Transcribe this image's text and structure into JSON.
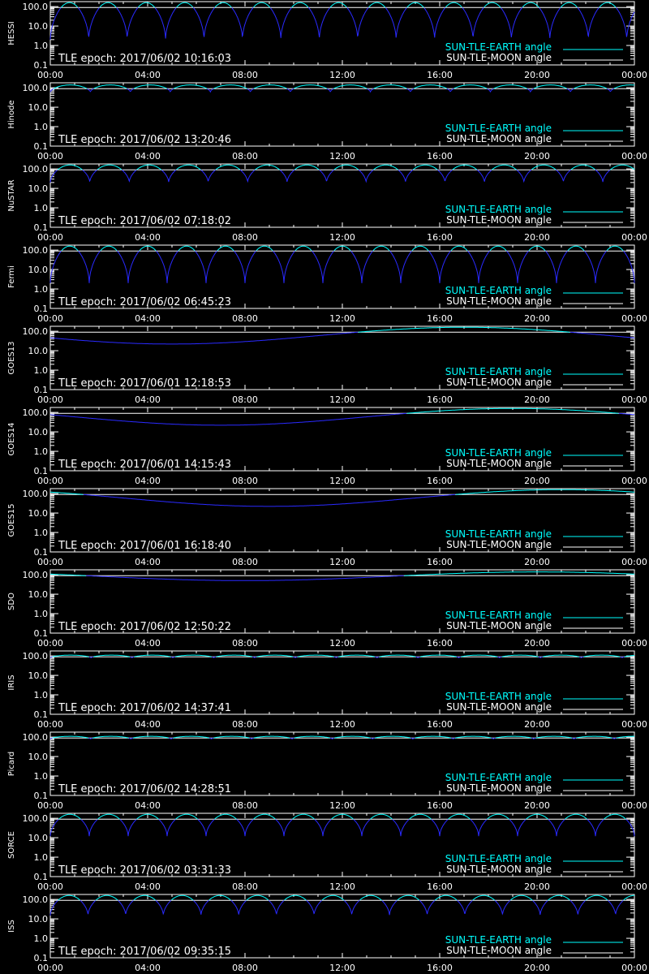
{
  "x_ticks": [
    "00:00",
    "04:00",
    "08:00",
    "12:00",
    "16:00",
    "20:00",
    "00:00"
  ],
  "y_ticks": [
    "100.0",
    "10.0",
    "1.0",
    "0.1"
  ],
  "legend": {
    "earth": "SUN-TLE-EARTH angle",
    "moon": "SUN-TLE-MOON angle"
  },
  "colors": {
    "background": "#000000",
    "axes": "#ffffff",
    "earth": "#00ffff",
    "orbit_dip": "#2a2aff",
    "moon": "#ffffff"
  },
  "chart_data": [
    {
      "type": "line",
      "ylabel": "HESSI",
      "epoch_text": "TLE epoch: 2017/06/02 10:16:03",
      "yscale": "log",
      "ylim": [
        0.1,
        180
      ],
      "xlim_hours": [
        0,
        24
      ],
      "moon_angle": 90,
      "earth_pattern": {
        "orbits_per_day": 15.2,
        "max": 160,
        "min": 2
      }
    },
    {
      "type": "line",
      "ylabel": "Hinode",
      "epoch_text": "TLE epoch: 2017/06/02 13:20:46",
      "yscale": "log",
      "ylim": [
        0.1,
        180
      ],
      "xlim_hours": [
        0,
        24
      ],
      "moon_angle": 90,
      "earth_pattern": {
        "orbits_per_day": 14.6,
        "max": 140,
        "min": 60
      }
    },
    {
      "type": "line",
      "ylabel": "NuSTAR",
      "epoch_text": "TLE epoch: 2017/06/02 07:18:02",
      "yscale": "log",
      "ylim": [
        0.1,
        180
      ],
      "xlim_hours": [
        0,
        24
      ],
      "moon_angle": 90,
      "earth_pattern": {
        "orbits_per_day": 14.8,
        "max": 160,
        "min": 20
      }
    },
    {
      "type": "line",
      "ylabel": "Fermi",
      "epoch_text": "TLE epoch: 2017/06/02 06:45:23",
      "yscale": "log",
      "ylim": [
        0.1,
        180
      ],
      "xlim_hours": [
        0,
        24
      ],
      "moon_angle": 90,
      "earth_pattern": {
        "orbits_per_day": 15.0,
        "max": 160,
        "min": 2
      }
    },
    {
      "type": "line",
      "ylabel": "GOES13",
      "epoch_text": "TLE epoch: 2017/06/01 12:18:53",
      "yscale": "log",
      "ylim": [
        0.1,
        180
      ],
      "xlim_hours": [
        0,
        24
      ],
      "moon_angle": 90,
      "earth_pattern": {
        "orbits_per_day": 1,
        "max": 160,
        "min": 22,
        "min_hour": 5
      }
    },
    {
      "type": "line",
      "ylabel": "GOES14",
      "epoch_text": "TLE epoch: 2017/06/01 14:15:43",
      "yscale": "log",
      "ylim": [
        0.1,
        180
      ],
      "xlim_hours": [
        0,
        24
      ],
      "moon_angle": 90,
      "earth_pattern": {
        "orbits_per_day": 1,
        "max": 160,
        "min": 22,
        "min_hour": 7
      }
    },
    {
      "type": "line",
      "ylabel": "GOES15",
      "epoch_text": "TLE epoch: 2017/06/01 16:18:40",
      "yscale": "log",
      "ylim": [
        0.1,
        180
      ],
      "xlim_hours": [
        0,
        24
      ],
      "moon_angle": 90,
      "earth_pattern": {
        "orbits_per_day": 1,
        "max": 160,
        "min": 22,
        "min_hour": 9
      }
    },
    {
      "type": "line",
      "ylabel": "SDO",
      "epoch_text": "TLE epoch: 2017/06/02 12:50:22",
      "yscale": "log",
      "ylim": [
        0.1,
        180
      ],
      "xlim_hours": [
        0,
        24
      ],
      "moon_angle": 90,
      "earth_pattern": {
        "orbits_per_day": 1,
        "max": 140,
        "min": 50,
        "min_hour": 8
      }
    },
    {
      "type": "line",
      "ylabel": "IRIS",
      "epoch_text": "TLE epoch: 2017/06/02 14:37:41",
      "yscale": "log",
      "ylim": [
        0.1,
        180
      ],
      "xlim_hours": [
        0,
        24
      ],
      "moon_angle": 90,
      "earth_pattern": {
        "orbits_per_day": 14.3,
        "max": 110,
        "min": 80
      }
    },
    {
      "type": "line",
      "ylabel": "Picard",
      "epoch_text": "TLE epoch: 2017/06/02 14:28:51",
      "yscale": "log",
      "ylim": [
        0.1,
        180
      ],
      "xlim_hours": [
        0,
        24
      ],
      "moon_angle": 90,
      "earth_pattern": {
        "orbits_per_day": 14.5,
        "max": 110,
        "min": 80
      }
    },
    {
      "type": "line",
      "ylabel": "SORCE",
      "epoch_text": "TLE epoch: 2017/06/02 03:31:33",
      "yscale": "log",
      "ylim": [
        0.1,
        180
      ],
      "xlim_hours": [
        0,
        24
      ],
      "moon_angle": 90,
      "earth_pattern": {
        "orbits_per_day": 15.0,
        "max": 160,
        "min": 12
      }
    },
    {
      "type": "line",
      "ylabel": "ISS",
      "epoch_text": "TLE epoch: 2017/06/02 09:35:15",
      "yscale": "log",
      "ylim": [
        0.1,
        180
      ],
      "xlim_hours": [
        0,
        24
      ],
      "moon_angle": 90,
      "earth_pattern": {
        "orbits_per_day": 15.5,
        "max": 160,
        "min": 15
      }
    }
  ]
}
